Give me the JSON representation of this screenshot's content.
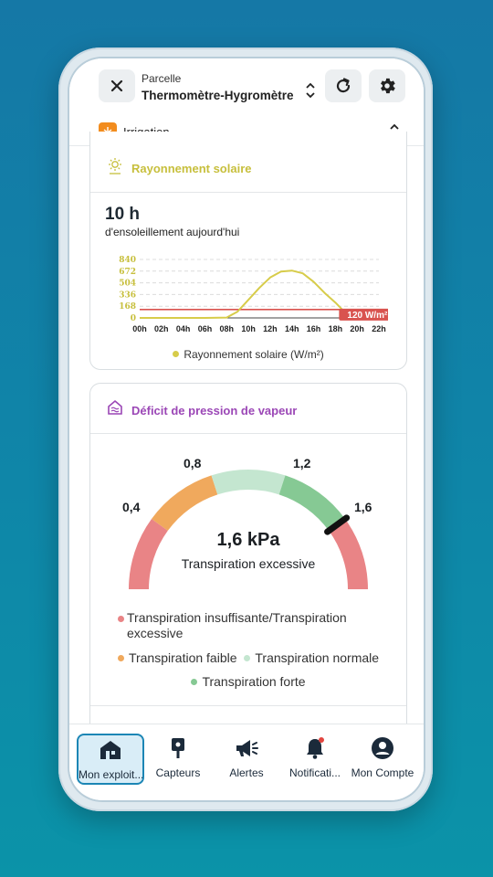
{
  "header": {
    "close_icon": "close-icon",
    "parcel_label": "Parcelle",
    "parcel_name": "Thermomètre-Hygromètre",
    "refresh_icon": "refresh-icon",
    "settings_icon": "gear-icon",
    "category_label": "Irrigation",
    "category_color": "#f28c1e"
  },
  "solar_card": {
    "title": "Rayonnement solaire",
    "title_color": "#c7bf3c",
    "sun_hours": "10 h",
    "sun_hours_caption": "d'ensoleillement aujourd'hui",
    "threshold_label": "120 W/m²",
    "legend_label": "Rayonnement solaire (W/m²)",
    "series_color": "#d7cc4a",
    "threshold_color": "#d9534f"
  },
  "chart_data": {
    "type": "line",
    "title": "",
    "xlabel": "",
    "ylabel": "",
    "x": [
      "00h",
      "02h",
      "04h",
      "06h",
      "08h",
      "10h",
      "12h",
      "14h",
      "16h",
      "18h",
      "20h",
      "22h"
    ],
    "yticks": [
      0,
      168,
      336,
      504,
      672,
      840
    ],
    "ylim": [
      0,
      840
    ],
    "series": [
      {
        "name": "Rayonnement solaire (W/m²)",
        "points": [
          [
            0,
            0
          ],
          [
            2,
            0
          ],
          [
            4,
            0
          ],
          [
            6,
            0
          ],
          [
            8,
            5
          ],
          [
            9,
            90
          ],
          [
            10,
            260
          ],
          [
            11,
            430
          ],
          [
            12,
            580
          ],
          [
            13,
            665
          ],
          [
            14,
            680
          ],
          [
            15,
            640
          ],
          [
            16,
            520
          ],
          [
            17,
            360
          ],
          [
            18,
            220
          ],
          [
            19,
            60
          ],
          [
            20,
            0
          ]
        ]
      }
    ],
    "threshold": 120,
    "grid": true,
    "legend": "bottom"
  },
  "vpd_card": {
    "title": "Déficit de pression de vapeur",
    "title_color": "#9b47b6",
    "value": "1,6 kPa",
    "status": "Transpiration excessive",
    "tick_labels": [
      "0,4",
      "0,8",
      "1,2",
      "1,6"
    ],
    "gauge_value": 1.6,
    "gauge_range": [
      0,
      2.0
    ],
    "zones": [
      {
        "from": 0.0,
        "to": 0.4,
        "color": "#e98486"
      },
      {
        "from": 0.4,
        "to": 0.8,
        "color": "#f0a95d"
      },
      {
        "from": 0.8,
        "to": 1.2,
        "color": "#c4e6d0"
      },
      {
        "from": 1.2,
        "to": 1.6,
        "color": "#86c994"
      },
      {
        "from": 1.6,
        "to": 2.0,
        "color": "#e98486"
      }
    ],
    "legend": [
      {
        "label": "Transpiration insuffisante/Transpiration excessive",
        "color": "#e98486"
      },
      {
        "label": "Transpiration faible",
        "color": "#f0a95d"
      },
      {
        "label": "Transpiration normale",
        "color": "#c4e6d0"
      },
      {
        "label": "Transpiration forte",
        "color": "#86c994"
      }
    ]
  },
  "nav": {
    "items": [
      {
        "label": "Mon exploit...",
        "icon": "farm-house-icon",
        "active": true
      },
      {
        "label": "Capteurs",
        "icon": "sensor-icon"
      },
      {
        "label": "Alertes",
        "icon": "megaphone-icon"
      },
      {
        "label": "Notificati...",
        "icon": "bell-icon"
      },
      {
        "label": "Mon Compte",
        "icon": "account-icon"
      }
    ],
    "active_color": "#1c86b5"
  }
}
